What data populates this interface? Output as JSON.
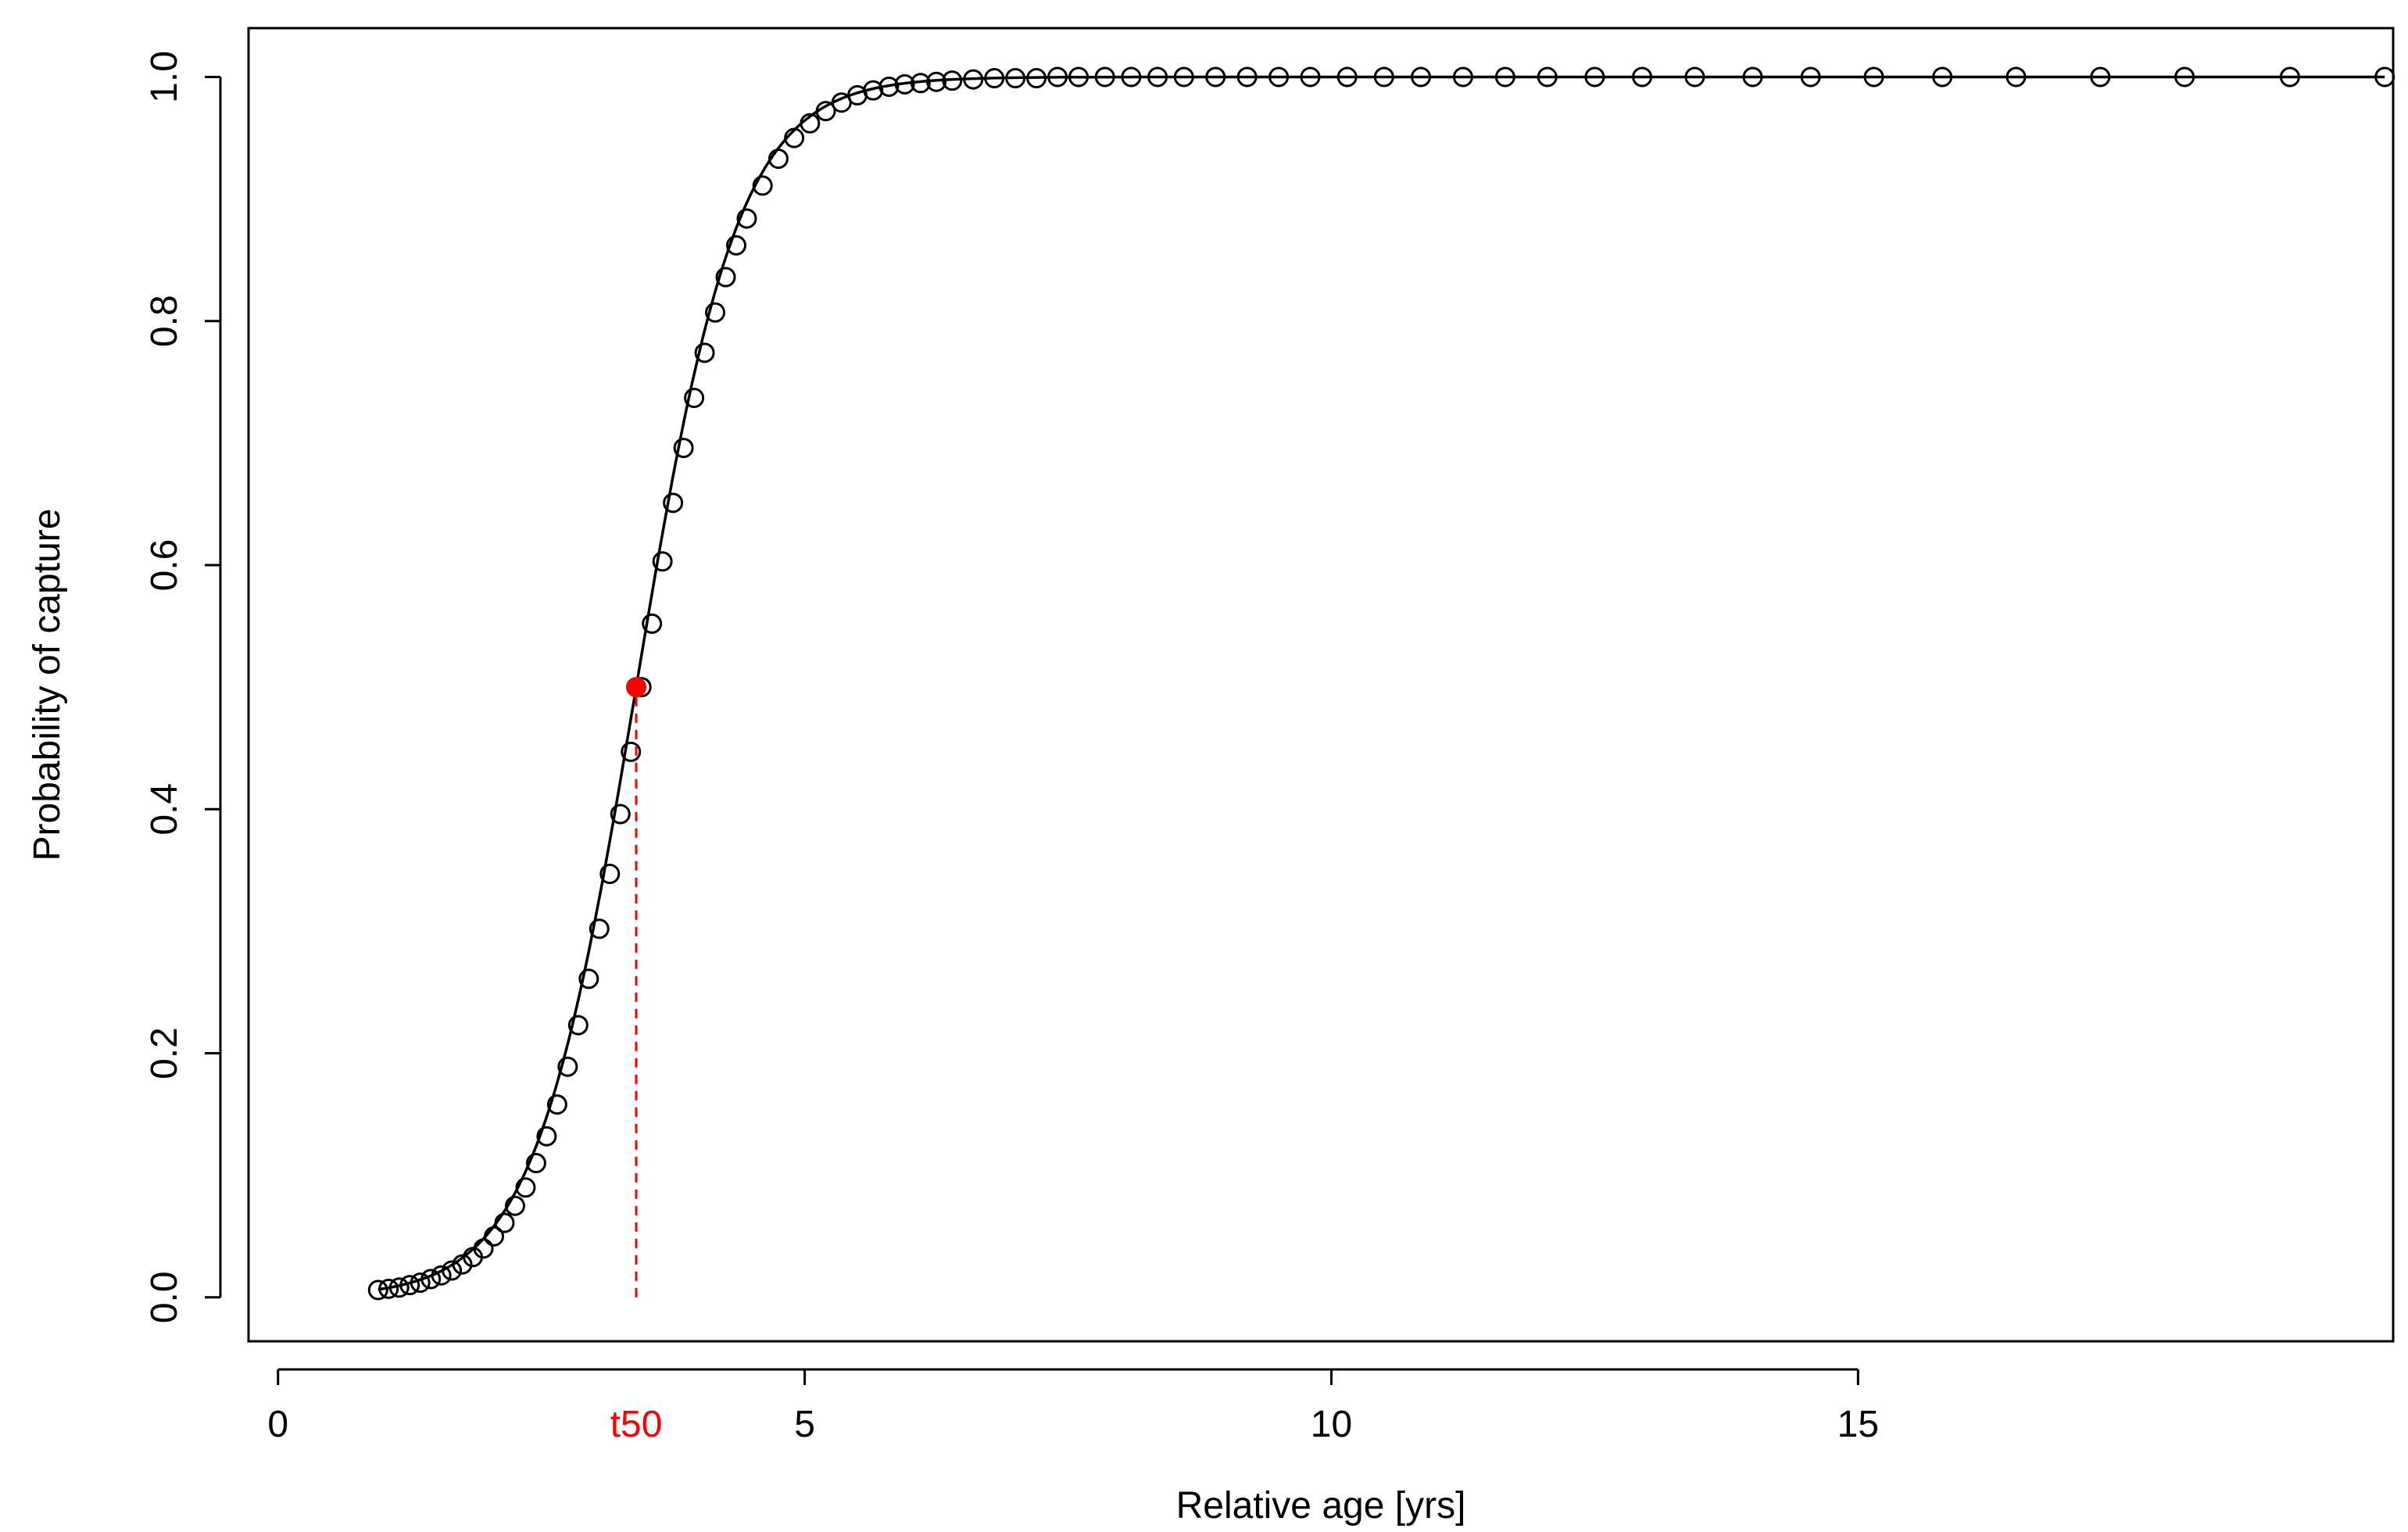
{
  "chart_data": {
    "type": "scatter",
    "title": "",
    "xlabel": "Relative age [yrs]",
    "ylabel": "Probability of capture",
    "xlim": [
      -0.28,
      20.08
    ],
    "ylim": [
      -0.036,
      1.04
    ],
    "xticks": [
      0,
      5,
      10,
      15
    ],
    "xtick_labels": [
      "0",
      "5",
      "10",
      "15"
    ],
    "yticks": [
      0.0,
      0.2,
      0.4,
      0.6,
      0.8,
      1.0
    ],
    "ytick_labels": [
      "0.0",
      "0.2",
      "0.4",
      "0.6",
      "0.8",
      "1.0"
    ],
    "grid": false,
    "legend": "none",
    "curve": {
      "type": "logistic",
      "t50": 3.4,
      "slope": 2.06,
      "x_range": [
        0.95,
        20.0
      ],
      "color": "#000000"
    },
    "series": [
      {
        "marker": "open-circle",
        "color": "#000000",
        "x": [
          0.95,
          1.05,
          1.15,
          1.25,
          1.35,
          1.45,
          1.55,
          1.65,
          1.75,
          1.85,
          1.95,
          2.05,
          2.15,
          2.25,
          2.35,
          2.45,
          2.55,
          2.65,
          2.75,
          2.85,
          2.95,
          3.05,
          3.15,
          3.25,
          3.35,
          3.45,
          3.55,
          3.65,
          3.75,
          3.85,
          3.95,
          4.05,
          4.15,
          4.25,
          4.35,
          4.45,
          4.6,
          4.75,
          4.9,
          5.05,
          5.2,
          5.35,
          5.5,
          5.65,
          5.8,
          5.95,
          6.1,
          6.25,
          6.4,
          6.6,
          6.8,
          7.0,
          7.2,
          7.4,
          7.6,
          7.85,
          8.1,
          8.35,
          8.6,
          8.9,
          9.2,
          9.5,
          9.8,
          10.15,
          10.5,
          10.85,
          11.25,
          11.65,
          12.05,
          12.5,
          12.95,
          13.45,
          14.0,
          14.55,
          15.15,
          15.8,
          16.5,
          17.3,
          18.1,
          19.1,
          20.0
        ],
        "y": [
          0.006,
          0.007,
          0.008,
          0.01,
          0.012,
          0.015,
          0.018,
          0.022,
          0.027,
          0.033,
          0.04,
          0.05,
          0.061,
          0.075,
          0.09,
          0.11,
          0.132,
          0.158,
          0.189,
          0.223,
          0.261,
          0.302,
          0.347,
          0.396,
          0.447,
          0.5,
          0.552,
          0.603,
          0.651,
          0.696,
          0.737,
          0.774,
          0.807,
          0.836,
          0.862,
          0.884,
          0.911,
          0.933,
          0.95,
          0.962,
          0.972,
          0.979,
          0.985,
          0.989,
          0.992,
          0.994,
          0.995,
          0.996,
          0.997,
          0.998,
          0.999,
          0.999,
          0.999,
          1.0,
          1.0,
          1.0,
          1.0,
          1.0,
          1.0,
          1.0,
          1.0,
          1.0,
          1.0,
          1.0,
          1.0,
          1.0,
          1.0,
          1.0,
          1.0,
          1.0,
          1.0,
          1.0,
          1.0,
          1.0,
          1.0,
          1.0,
          1.0,
          1.0,
          1.0,
          1.0,
          1.0
        ]
      }
    ],
    "annotations": [
      {
        "type": "point",
        "x": 3.4,
        "y": 0.5,
        "color": "#ff0000",
        "marker": "filled-circle"
      },
      {
        "type": "dashed-vline",
        "x": 3.4,
        "y_from": 0.0,
        "y_to": 0.5,
        "color": "#ff0000"
      },
      {
        "type": "axis-label",
        "text": "t50",
        "x": 3.4,
        "color": "#ff0000"
      }
    ]
  }
}
